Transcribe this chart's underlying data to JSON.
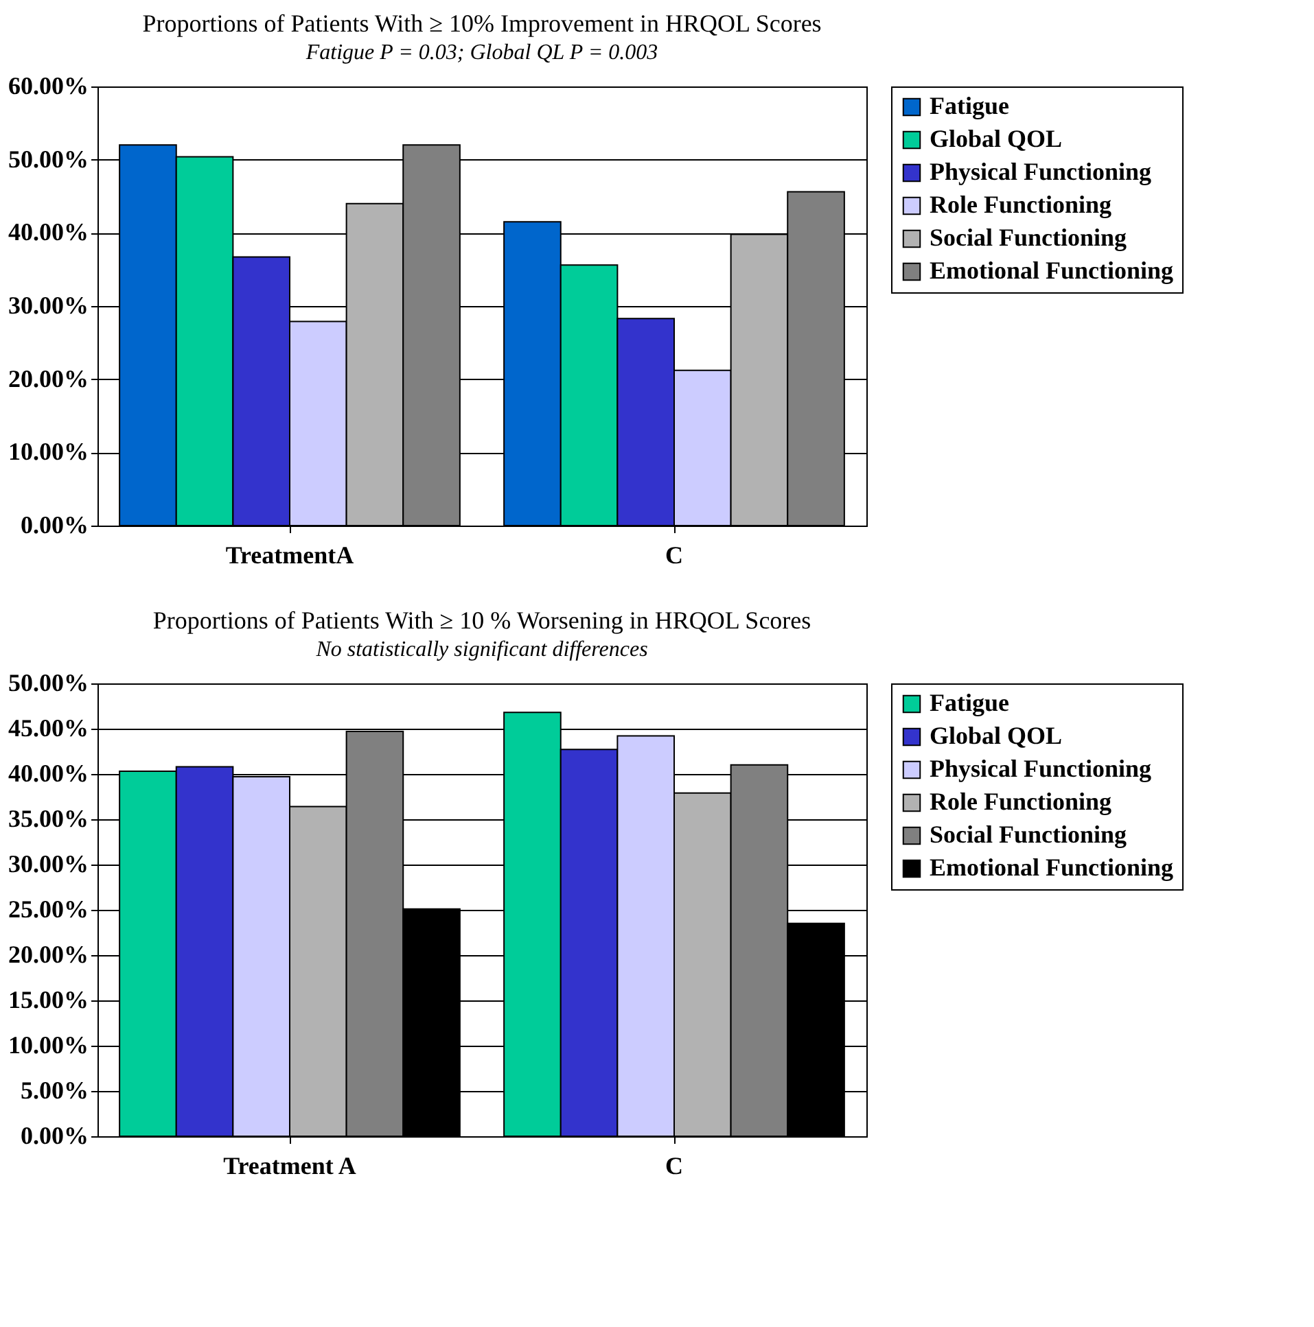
{
  "chart_data": [
    {
      "type": "bar",
      "title": "Proportions of Patients With ≥ 10%\nImprovement in HRQOL Scores",
      "subtitle": "Fatigue P = 0.03; Global QL P = 0.003",
      "categories": [
        "TreatmentA",
        "C"
      ],
      "series": [
        {
          "name": "Fatigue",
          "color": "#0066cc",
          "values": [
            52,
            41.5
          ]
        },
        {
          "name": "Global QOL",
          "color": "#00cc99",
          "values": [
            50.4,
            35.6
          ]
        },
        {
          "name": "Physical Functioning",
          "color": "#3333cc",
          "values": [
            36.7,
            28.3
          ]
        },
        {
          "name": "Role Functioning",
          "color": "#ccccff",
          "values": [
            27.9,
            21.2
          ]
        },
        {
          "name": "Social Functioning",
          "color": "#b2b2b2",
          "values": [
            44,
            39.8
          ]
        },
        {
          "name": "Emotional Functioning",
          "color": "#808080",
          "values": [
            52,
            45.6
          ]
        }
      ],
      "ylim": [
        0,
        60
      ],
      "yticks": [
        {
          "value": 0,
          "label": "0.00%"
        },
        {
          "value": 10,
          "label": "10.00%"
        },
        {
          "value": 20,
          "label": "20.00%"
        },
        {
          "value": 30,
          "label": "30.00%"
        },
        {
          "value": 40,
          "label": "40.00%"
        },
        {
          "value": 50,
          "label": "50.00%"
        },
        {
          "value": 60,
          "label": "60.00%"
        }
      ],
      "grid": "y",
      "legend": "right"
    },
    {
      "type": "bar",
      "title": "Proportions of Patients With ≥ 10 %\nWorsening in HRQOL Scores",
      "subtitle": "No statistically significant differences",
      "categories": [
        "Treatment A",
        "C"
      ],
      "series": [
        {
          "name": "Fatigue",
          "color": "#00cc99",
          "values": [
            40.3,
            46.8
          ]
        },
        {
          "name": "Global QOL",
          "color": "#3333cc",
          "values": [
            40.8,
            42.7
          ]
        },
        {
          "name": "Physical Functioning",
          "color": "#ccccff",
          "values": [
            39.7,
            44.2
          ]
        },
        {
          "name": "Role Functioning",
          "color": "#b2b2b2",
          "values": [
            36.4,
            37.9
          ]
        },
        {
          "name": "Social Functioning",
          "color": "#808080",
          "values": [
            44.7,
            41
          ]
        },
        {
          "name": "Emotional Functioning",
          "color": "#000000",
          "values": [
            25.1,
            23.5
          ]
        }
      ],
      "ylim": [
        0,
        50
      ],
      "yticks": [
        {
          "value": 0,
          "label": "0.00%"
        },
        {
          "value": 5,
          "label": "5.00%"
        },
        {
          "value": 10,
          "label": "10.00%"
        },
        {
          "value": 15,
          "label": "15.00%"
        },
        {
          "value": 20,
          "label": "20.00%"
        },
        {
          "value": 25,
          "label": "25.00%"
        },
        {
          "value": 30,
          "label": "30.00%"
        },
        {
          "value": 35,
          "label": "35.00%"
        },
        {
          "value": 40,
          "label": "40.00%"
        },
        {
          "value": 45,
          "label": "45.00%"
        },
        {
          "value": 50,
          "label": "50.00%"
        }
      ],
      "grid": "y",
      "legend": "right"
    }
  ]
}
